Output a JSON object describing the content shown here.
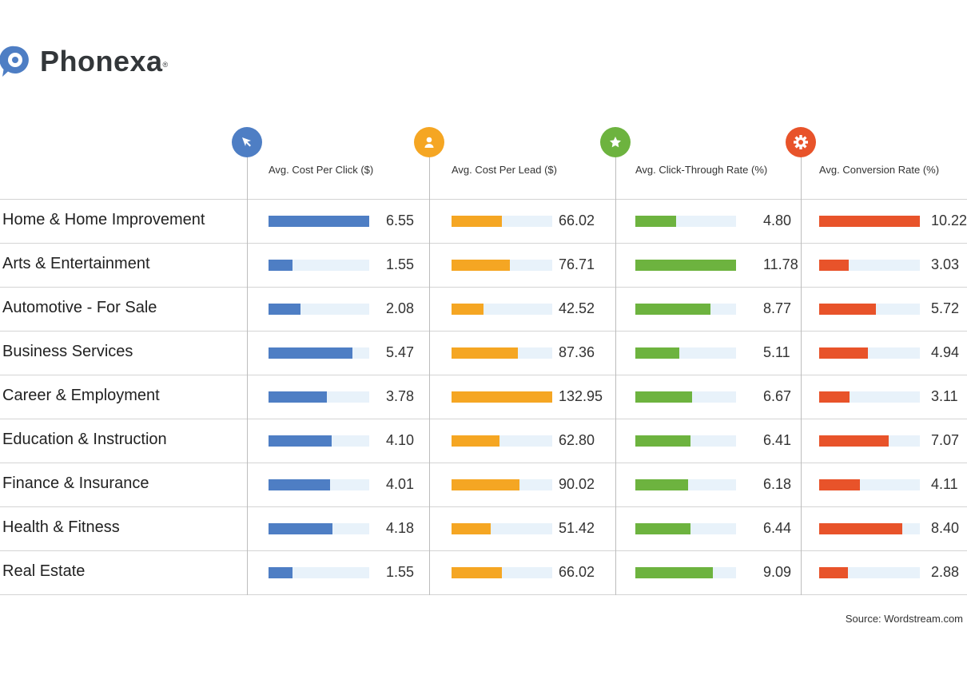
{
  "brand": {
    "name": "Phonexa",
    "registered": "®"
  },
  "chart_data": {
    "type": "bar",
    "categories": [
      "Home & Home Improvement",
      "Arts & Entertainment",
      "Automotive - For Sale",
      "Business Services",
      "Career & Employment",
      "Education & Instruction",
      "Finance & Insurance",
      "Health & Fitness",
      "Real Estate"
    ],
    "series": [
      {
        "name": "Avg. Cost Per Click ($)",
        "icon": "cursor-icon",
        "color": "#4e7ec4",
        "values": [
          "6.55",
          "1.55",
          "2.08",
          "5.47",
          "3.78",
          "4.10",
          "4.01",
          "4.18",
          "1.55"
        ]
      },
      {
        "name": "Avg. Cost Per Lead ($)",
        "icon": "user-icon",
        "color": "#f5a623",
        "values": [
          "66.02",
          "76.71",
          "42.52",
          "87.36",
          "132.95",
          "62.80",
          "90.02",
          "51.42",
          "66.02"
        ]
      },
      {
        "name": "Avg. Click-Through Rate (%)",
        "icon": "star-icon",
        "color": "#6db33f",
        "values": [
          "4.80",
          "11.78",
          "8.77",
          "5.11",
          "6.67",
          "6.41",
          "6.18",
          "6.44",
          "9.09"
        ]
      },
      {
        "name": "Avg. Conversion Rate (%)",
        "icon": "gear-icon",
        "color": "#e8532a",
        "values": [
          "10.22",
          "3.03",
          "5.72",
          "4.94",
          "3.11",
          "7.07",
          "4.11",
          "8.40",
          "2.88"
        ]
      }
    ],
    "track_color": "#e8f2fa"
  },
  "source": "Source: Wordstream.com"
}
